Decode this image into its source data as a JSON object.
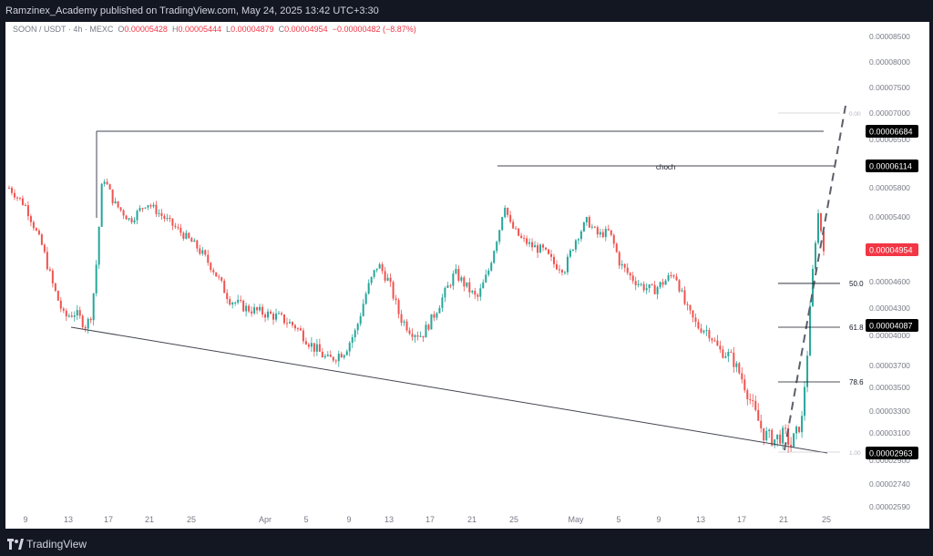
{
  "header": {
    "publisher": "Ramzinex_Academy published on TradingView.com, May 24, 2025 13:42 UTC+3:30"
  },
  "legend": {
    "symbol": "SOON / USDT · 4h · MEXC",
    "open_label": "O",
    "open": "0.00005428",
    "high_label": "H",
    "high": "0.00005444",
    "low_label": "L",
    "low": "0.00004879",
    "close_label": "C",
    "close": "0.00004954",
    "change": "−0.00000482 (−8.87%)"
  },
  "footer": {
    "brand": "TradingView"
  },
  "colors": {
    "up": "#26a69a",
    "down": "#ef5350",
    "axis_text": "#787b86",
    "tag_bg": "#000000",
    "last_price_bg": "#f23645"
  },
  "chart_data": {
    "type": "candlestick",
    "timeframe": "4h",
    "x_ticks": [
      "9",
      "13",
      "17",
      "21",
      "25",
      "Apr",
      "5",
      "9",
      "13",
      "17",
      "21",
      "25",
      "May",
      "5",
      "9",
      "13",
      "17",
      "21",
      "25"
    ],
    "y_ticks": [
      "0.00008500",
      "0.00008000",
      "0.00007500",
      "0.00007000",
      "0.00006500",
      "0.00006200",
      "0.00005800",
      "0.00005400",
      "0.00005000",
      "0.00004600",
      "0.00004300",
      "0.00004000",
      "0.00003700",
      "0.00003500",
      "0.00003300",
      "0.00003100",
      "0.00002900",
      "0.00002740",
      "0.00002590"
    ],
    "price_tags": [
      {
        "value": "0.00006684",
        "style": "dark"
      },
      {
        "value": "0.00006114",
        "style": "dark"
      },
      {
        "value": "0.00004954",
        "style": "last"
      },
      {
        "value": "0.00004087",
        "style": "dark"
      },
      {
        "value": "0.00002963",
        "style": "dark"
      }
    ],
    "annotations": {
      "choch": "choch",
      "fib_levels": [
        {
          "label": "0.00",
          "price": 7e-05
        },
        {
          "label": "50.0",
          "price": 4.58e-05
        },
        {
          "label": "61.8",
          "price": 4.09e-05
        },
        {
          "label": "78.6",
          "price": 3.55e-05
        },
        {
          "label": "1.00",
          "price": 2.96e-05
        }
      ]
    },
    "price_path": [
      [
        0,
        5.8e-05
      ],
      [
        3,
        5.55e-05
      ],
      [
        6,
        5e-05
      ],
      [
        8,
        4.55e-05
      ],
      [
        10,
        4.2e-05
      ],
      [
        12,
        4.25e-05
      ],
      [
        14,
        4.1e-05
      ],
      [
        15,
        4.25e-05
      ],
      [
        16,
        4.9e-05
      ],
      [
        17,
        6e-05
      ],
      [
        19,
        5.6e-05
      ],
      [
        22,
        5.35e-05
      ],
      [
        25,
        5.6e-05
      ],
      [
        28,
        5.4e-05
      ],
      [
        31,
        5.2e-05
      ],
      [
        34,
        5e-05
      ],
      [
        37,
        4.75e-05
      ],
      [
        40,
        4.4e-05
      ],
      [
        43,
        4.3e-05
      ],
      [
        46,
        4.25e-05
      ],
      [
        49,
        4.2e-05
      ],
      [
        52,
        4.1e-05
      ],
      [
        55,
        3.9e-05
      ],
      [
        58,
        3.75e-05
      ],
      [
        61,
        3.85e-05
      ],
      [
        63,
        4.05e-05
      ],
      [
        65,
        4.5e-05
      ],
      [
        67,
        4.8e-05
      ],
      [
        69,
        4.6e-05
      ],
      [
        71,
        4.2e-05
      ],
      [
        73,
        4.05e-05
      ],
      [
        75,
        4e-05
      ],
      [
        77,
        4.2e-05
      ],
      [
        79,
        4.45e-05
      ],
      [
        81,
        4.7e-05
      ],
      [
        83,
        4.55e-05
      ],
      [
        85,
        4.4e-05
      ],
      [
        87,
        4.7e-05
      ],
      [
        89,
        5.2e-05
      ],
      [
        90,
        5.6e-05
      ],
      [
        91,
        5.3e-05
      ],
      [
        93,
        5.1e-05
      ],
      [
        95,
        5e-05
      ],
      [
        97,
        4.95e-05
      ],
      [
        99,
        4.8e-05
      ],
      [
        101,
        4.75e-05
      ],
      [
        103,
        5.1e-05
      ],
      [
        105,
        5.35e-05
      ],
      [
        107,
        5.15e-05
      ],
      [
        109,
        5.2e-05
      ],
      [
        111,
        4.8e-05
      ],
      [
        113,
        4.65e-05
      ],
      [
        115,
        4.55e-05
      ],
      [
        117,
        4.5e-05
      ],
      [
        119,
        4.6e-05
      ],
      [
        121,
        4.7e-05
      ],
      [
        123,
        4.3e-05
      ],
      [
        125,
        4.1e-05
      ],
      [
        127,
        4.05e-05
      ],
      [
        129,
        3.85e-05
      ],
      [
        131,
        3.8e-05
      ],
      [
        133,
        3.6e-05
      ],
      [
        135,
        3.35e-05
      ],
      [
        137,
        3.1e-05
      ],
      [
        139,
        3.05e-05
      ],
      [
        141,
        3.1e-05
      ],
      [
        142,
        3e-05
      ],
      [
        144,
        3.2e-05
      ],
      [
        145,
        3.8e-05
      ],
      [
        146,
        4.7e-05
      ],
      [
        147,
        5.45e-05
      ],
      [
        148,
        5e-05
      ]
    ]
  }
}
